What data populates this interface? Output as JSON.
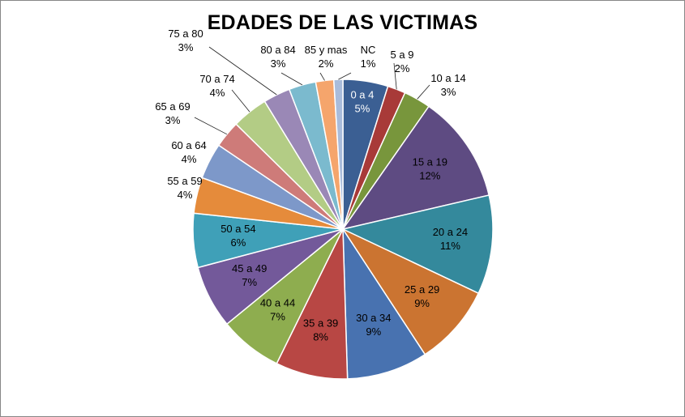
{
  "chart_data": {
    "type": "pie",
    "title": "EDADES DE LAS VICTIMAS",
    "slices": [
      {
        "label": "0 a 4",
        "value": 5,
        "display": "5%",
        "color": "#3B5F93"
      },
      {
        "label": "5 a 9",
        "value": 2,
        "display": "2%",
        "color": "#A83A38"
      },
      {
        "label": "10 a 14",
        "value": 3,
        "display": "3%",
        "color": "#78963C"
      },
      {
        "label": "15 a 19",
        "value": 12,
        "display": "12%",
        "color": "#5E4B82"
      },
      {
        "label": "20 a 24",
        "value": 11,
        "display": "11%",
        "color": "#34899C"
      },
      {
        "label": "25 a 29",
        "value": 9,
        "display": "9%",
        "color": "#CB7431"
      },
      {
        "label": "30 a 34",
        "value": 9,
        "display": "9%",
        "color": "#4872B0"
      },
      {
        "label": "35 a 39",
        "value": 8,
        "display": "8%",
        "color": "#B84744"
      },
      {
        "label": "40 a 44",
        "value": 7,
        "display": "7%",
        "color": "#8EAD4F"
      },
      {
        "label": "45 a 49",
        "value": 7,
        "display": "7%",
        "color": "#73599A"
      },
      {
        "label": "50 a 54",
        "value": 6,
        "display": "6%",
        "color": "#3FA0B8"
      },
      {
        "label": "55 a 59",
        "value": 4,
        "display": "4%",
        "color": "#E58B3B"
      },
      {
        "label": "60 a 64",
        "value": 4,
        "display": "4%",
        "color": "#7D98C9"
      },
      {
        "label": "65 a 69",
        "value": 3,
        "display": "3%",
        "color": "#CE7B79"
      },
      {
        "label": "70 a 74",
        "value": 4,
        "display": "4%",
        "color": "#B3CC85"
      },
      {
        "label": "75 a 80",
        "value": 3,
        "display": "3%",
        "color": "#9A88B6"
      },
      {
        "label": "80 a 84",
        "value": 3,
        "display": "3%",
        "color": "#7BBACE"
      },
      {
        "label": "85 y mas",
        "value": 2,
        "display": "2%",
        "color": "#F5A56C"
      },
      {
        "label": "NC",
        "value": 1,
        "display": "1%",
        "color": "#A9BCDB"
      }
    ]
  }
}
